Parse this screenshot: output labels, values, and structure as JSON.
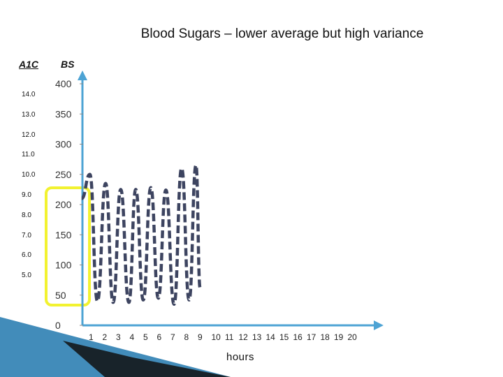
{
  "title": "Blood Sugars – lower average but high variance",
  "a1c_header": "A1C",
  "bs_header": "BS",
  "a1c_ticks": [
    "14.0",
    "13.0",
    "12.0",
    "11.0",
    "10.0",
    "9.0",
    "8.0",
    "7.0",
    "6.0",
    "5.0"
  ],
  "colors": {
    "axis": "#4da3d4",
    "line": "#3d4460",
    "highlight": "#f2f230",
    "decoration": "#2d7fb3"
  },
  "chart_data": {
    "type": "line",
    "title": "Blood Sugars – lower average but high variance",
    "xlabel": "hours",
    "ylabel": "BS",
    "y_ticks": [
      400,
      350,
      300,
      250,
      200,
      150,
      100,
      50,
      0
    ],
    "x_ticks": [
      1,
      2,
      3,
      4,
      5,
      6,
      7,
      8,
      9,
      10,
      11,
      12,
      13,
      14,
      15,
      16,
      17,
      18,
      19,
      20
    ],
    "xlim": [
      0,
      20
    ],
    "ylim": [
      0,
      420
    ],
    "line_style": "dashed",
    "series": [
      {
        "points": [
          [
            0.3,
            210
          ],
          [
            0.9,
            250
          ],
          [
            1.45,
            40
          ],
          [
            2.05,
            235
          ],
          [
            2.6,
            38
          ],
          [
            3.15,
            225
          ],
          [
            3.75,
            38
          ],
          [
            4.25,
            225
          ],
          [
            4.8,
            42
          ],
          [
            5.35,
            228
          ],
          [
            5.9,
            45
          ],
          [
            6.45,
            224
          ],
          [
            7.05,
            35
          ],
          [
            7.6,
            260
          ],
          [
            8.15,
            42
          ],
          [
            8.65,
            265
          ],
          [
            8.95,
            62
          ]
        ]
      }
    ]
  }
}
